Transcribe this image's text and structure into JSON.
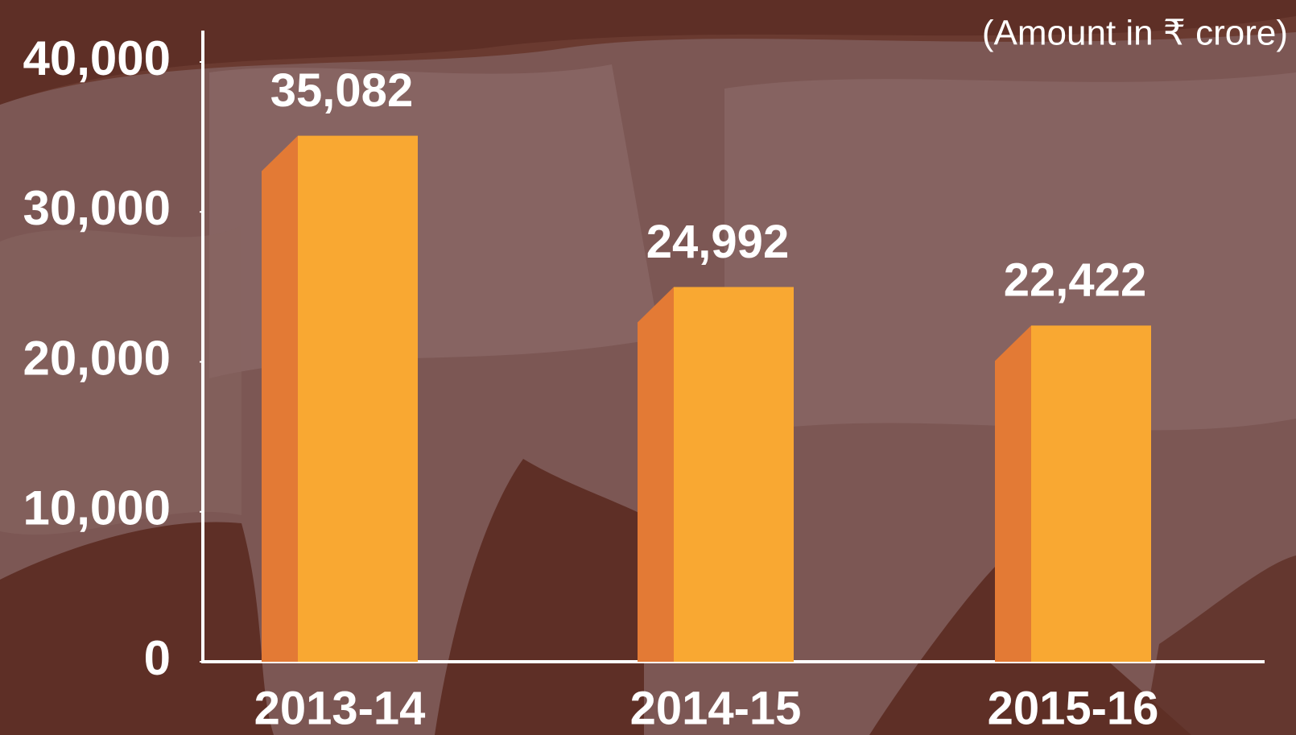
{
  "chart_data": {
    "type": "bar",
    "subtitle": "(Amount in ₹ crore)",
    "categories": [
      "2013-14",
      "2014-15",
      "2015-16"
    ],
    "values": [
      35082,
      24992,
      22422
    ],
    "value_labels": [
      "35,082",
      "24,992",
      "22,422"
    ],
    "color": "#f9a832",
    "side_color": "#e37a35",
    "ylim": [
      0,
      40000
    ],
    "yticks": [
      0,
      {
        "value": 10000,
        "label": "10,000"
      },
      {
        "value": 20000,
        "label": "20,000"
      },
      {
        "value": 30000,
        "label": "30,000"
      },
      {
        "value": 40000,
        "label": "40,000"
      }
    ],
    "grid": false
  }
}
